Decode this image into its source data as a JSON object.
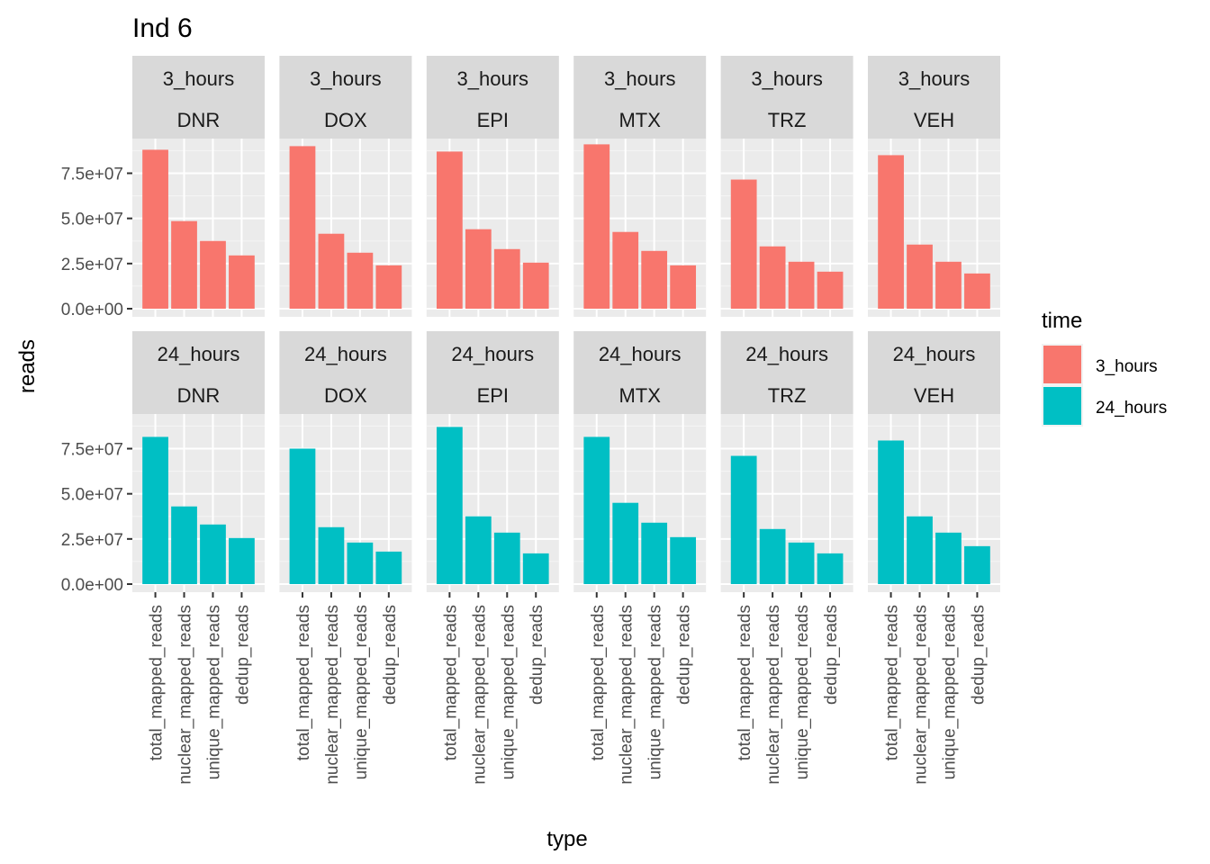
{
  "chart_data": {
    "type": "bar",
    "title": "Ind 6",
    "xlabel": "type",
    "ylabel": "reads",
    "categories": [
      "total_mapped_reads",
      "nuclear_mapped_reads",
      "unique_mapped_reads",
      "dedup_reads"
    ],
    "y_ticks": [
      "0.0e+00",
      "2.5e+07",
      "5.0e+07",
      "7.5e+07"
    ],
    "y_tick_values": [
      0,
      25000000,
      50000000,
      75000000
    ],
    "ylim": [
      0,
      95000000
    ],
    "grid": true,
    "legend": {
      "title": "time",
      "position": "right",
      "entries": [
        {
          "label": "3_hours",
          "color": "#F8766D"
        },
        {
          "label": "24_hours",
          "color": "#00BFC4"
        }
      ]
    },
    "drugs": [
      "DNR",
      "DOX",
      "EPI",
      "MTX",
      "TRZ",
      "VEH"
    ],
    "rows": [
      {
        "time": "3_hours",
        "color": "#F8766D",
        "panels": [
          {
            "drug": "DNR",
            "values": [
              88000000,
              48500000,
              37500000,
              29500000
            ]
          },
          {
            "drug": "DOX",
            "values": [
              90000000,
              41500000,
              31000000,
              24000000
            ]
          },
          {
            "drug": "EPI",
            "values": [
              87000000,
              44000000,
              33000000,
              25500000
            ]
          },
          {
            "drug": "MTX",
            "values": [
              91000000,
              42500000,
              32000000,
              24000000
            ]
          },
          {
            "drug": "TRZ",
            "values": [
              71500000,
              34500000,
              26000000,
              20500000
            ]
          },
          {
            "drug": "VEH",
            "values": [
              85000000,
              35500000,
              26000000,
              19500000
            ]
          }
        ]
      },
      {
        "time": "24_hours",
        "color": "#00BFC4",
        "panels": [
          {
            "drug": "DNR",
            "values": [
              81500000,
              43000000,
              33000000,
              25500000
            ]
          },
          {
            "drug": "DOX",
            "values": [
              75000000,
              31500000,
              23000000,
              18000000
            ]
          },
          {
            "drug": "EPI",
            "values": [
              87000000,
              37500000,
              28500000,
              17000000
            ]
          },
          {
            "drug": "MTX",
            "values": [
              81500000,
              45000000,
              34000000,
              26000000
            ]
          },
          {
            "drug": "TRZ",
            "values": [
              71000000,
              30500000,
              23000000,
              17000000
            ]
          },
          {
            "drug": "VEH",
            "values": [
              79500000,
              37500000,
              28500000,
              21000000
            ]
          }
        ]
      }
    ]
  }
}
